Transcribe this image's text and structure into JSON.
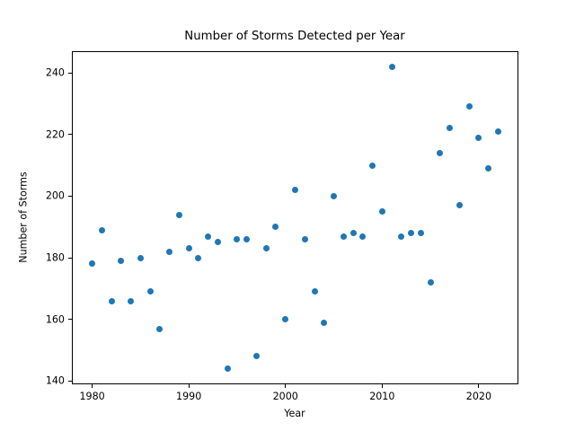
{
  "figure": {
    "background": "#ffffff",
    "text_color": "#000000"
  },
  "chart_data": {
    "type": "scatter",
    "title": "Number of Storms Detected per Year",
    "xlabel": "Year",
    "ylabel": "Number of Storms",
    "x": [
      1980,
      1981,
      1982,
      1983,
      1984,
      1985,
      1986,
      1987,
      1988,
      1989,
      1990,
      1991,
      1992,
      1993,
      1994,
      1995,
      1996,
      1997,
      1998,
      1999,
      2000,
      2001,
      2002,
      2003,
      2004,
      2005,
      2006,
      2007,
      2008,
      2009,
      2010,
      2011,
      2012,
      2013,
      2014,
      2015,
      2016,
      2017,
      2018,
      2019,
      2020,
      2021,
      2022
    ],
    "y": [
      178,
      189,
      166,
      179,
      166,
      180,
      169,
      157,
      182,
      194,
      183,
      180,
      187,
      185,
      144,
      186,
      186,
      148,
      183,
      190,
      160,
      202,
      186,
      169,
      159,
      200,
      187,
      188,
      187,
      210,
      195,
      242,
      187,
      188,
      188,
      172,
      214,
      222,
      197,
      229,
      219,
      209,
      221
    ],
    "xticks": [
      1980,
      1990,
      2000,
      2010,
      2020
    ],
    "yticks": [
      140,
      160,
      180,
      200,
      220,
      240
    ],
    "xlim": [
      1977.9,
      2024.1
    ],
    "ylim": [
      139.1,
      246.9
    ],
    "grid": false,
    "legend_position": "none",
    "point_color": "#1f77b4",
    "marker": "circle"
  }
}
